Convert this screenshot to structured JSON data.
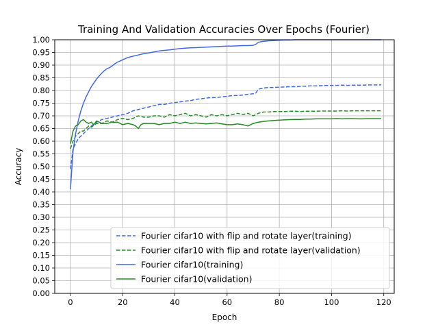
{
  "chart_data": {
    "type": "line",
    "title": "Training And Validation Accuracies Over Epochs (Fourier)",
    "xlabel": "Epoch",
    "ylabel": "Accuracy",
    "xlim": [
      -6,
      124
    ],
    "ylim": [
      0,
      1
    ],
    "xticks": [
      0,
      20,
      40,
      60,
      80,
      100,
      120
    ],
    "yticks": [
      0.0,
      0.05,
      0.1,
      0.15,
      0.2,
      0.25,
      0.3,
      0.35,
      0.4,
      0.45,
      0.5,
      0.55,
      0.6,
      0.65,
      0.7,
      0.75,
      0.8,
      0.85,
      0.9,
      0.95,
      1.0
    ],
    "grid": true,
    "legend_position": "lower-right",
    "series": [
      {
        "name": "Fourier cifar10 with flip and rotate layer(training)",
        "color": "#4169e1",
        "dash": "dashed",
        "points": [
          [
            0,
            0.49
          ],
          [
            1,
            0.57
          ],
          [
            2,
            0.59
          ],
          [
            3,
            0.61
          ],
          [
            4,
            0.62
          ],
          [
            5,
            0.63
          ],
          [
            6,
            0.64
          ],
          [
            7,
            0.65
          ],
          [
            8,
            0.66
          ],
          [
            10,
            0.675
          ],
          [
            12,
            0.685
          ],
          [
            14,
            0.69
          ],
          [
            16,
            0.695
          ],
          [
            18,
            0.7
          ],
          [
            20,
            0.705
          ],
          [
            22,
            0.71
          ],
          [
            24,
            0.72
          ],
          [
            26,
            0.725
          ],
          [
            28,
            0.73
          ],
          [
            30,
            0.735
          ],
          [
            32,
            0.74
          ],
          [
            34,
            0.745
          ],
          [
            36,
            0.745
          ],
          [
            38,
            0.75
          ],
          [
            40,
            0.752
          ],
          [
            42,
            0.755
          ],
          [
            44,
            0.758
          ],
          [
            46,
            0.76
          ],
          [
            48,
            0.765
          ],
          [
            50,
            0.767
          ],
          [
            52,
            0.77
          ],
          [
            54,
            0.772
          ],
          [
            56,
            0.772
          ],
          [
            58,
            0.775
          ],
          [
            60,
            0.777
          ],
          [
            62,
            0.78
          ],
          [
            64,
            0.78
          ],
          [
            66,
            0.782
          ],
          [
            68,
            0.785
          ],
          [
            70,
            0.787
          ],
          [
            71,
            0.79
          ],
          [
            72,
            0.805
          ],
          [
            74,
            0.81
          ],
          [
            76,
            0.812
          ],
          [
            78,
            0.812
          ],
          [
            80,
            0.813
          ],
          [
            82,
            0.814
          ],
          [
            84,
            0.815
          ],
          [
            86,
            0.815
          ],
          [
            88,
            0.816
          ],
          [
            90,
            0.817
          ],
          [
            92,
            0.818
          ],
          [
            94,
            0.818
          ],
          [
            96,
            0.819
          ],
          [
            98,
            0.82
          ],
          [
            100,
            0.82
          ],
          [
            102,
            0.82
          ],
          [
            104,
            0.821
          ],
          [
            106,
            0.82
          ],
          [
            108,
            0.821
          ],
          [
            110,
            0.821
          ],
          [
            112,
            0.821
          ],
          [
            114,
            0.822
          ],
          [
            116,
            0.822
          ],
          [
            119,
            0.822
          ]
        ]
      },
      {
        "name": "Fourier cifar10 with flip and rotate layer(validation)",
        "color": "#228b22",
        "dash": "dashed",
        "points": [
          [
            0,
            0.57
          ],
          [
            1,
            0.6
          ],
          [
            2,
            0.62
          ],
          [
            3,
            0.63
          ],
          [
            4,
            0.64
          ],
          [
            5,
            0.64
          ],
          [
            6,
            0.65
          ],
          [
            7,
            0.66
          ],
          [
            8,
            0.655
          ],
          [
            10,
            0.67
          ],
          [
            12,
            0.67
          ],
          [
            14,
            0.68
          ],
          [
            16,
            0.675
          ],
          [
            18,
            0.685
          ],
          [
            20,
            0.69
          ],
          [
            22,
            0.685
          ],
          [
            24,
            0.69
          ],
          [
            26,
            0.7
          ],
          [
            28,
            0.695
          ],
          [
            30,
            0.695
          ],
          [
            32,
            0.7
          ],
          [
            34,
            0.7
          ],
          [
            36,
            0.695
          ],
          [
            38,
            0.705
          ],
          [
            40,
            0.7
          ],
          [
            42,
            0.705
          ],
          [
            44,
            0.71
          ],
          [
            46,
            0.7
          ],
          [
            48,
            0.705
          ],
          [
            50,
            0.7
          ],
          [
            52,
            0.695
          ],
          [
            54,
            0.705
          ],
          [
            56,
            0.7
          ],
          [
            58,
            0.705
          ],
          [
            60,
            0.7
          ],
          [
            62,
            0.705
          ],
          [
            64,
            0.71
          ],
          [
            66,
            0.705
          ],
          [
            68,
            0.71
          ],
          [
            70,
            0.7
          ],
          [
            72,
            0.71
          ],
          [
            74,
            0.715
          ],
          [
            76,
            0.715
          ],
          [
            78,
            0.717
          ],
          [
            80,
            0.717
          ],
          [
            82,
            0.717
          ],
          [
            84,
            0.718
          ],
          [
            86,
            0.718
          ],
          [
            88,
            0.717
          ],
          [
            90,
            0.718
          ],
          [
            92,
            0.718
          ],
          [
            94,
            0.718
          ],
          [
            96,
            0.719
          ],
          [
            98,
            0.719
          ],
          [
            100,
            0.719
          ],
          [
            102,
            0.719
          ],
          [
            104,
            0.72
          ],
          [
            106,
            0.719
          ],
          [
            108,
            0.72
          ],
          [
            110,
            0.72
          ],
          [
            112,
            0.72
          ],
          [
            114,
            0.72
          ],
          [
            116,
            0.72
          ],
          [
            119,
            0.72
          ]
        ]
      },
      {
        "name": "Fourier cifar10(training)",
        "color": "#4169e1",
        "dash": "solid",
        "points": [
          [
            0,
            0.41
          ],
          [
            1,
            0.56
          ],
          [
            2,
            0.63
          ],
          [
            3,
            0.68
          ],
          [
            4,
            0.72
          ],
          [
            5,
            0.75
          ],
          [
            6,
            0.775
          ],
          [
            7,
            0.795
          ],
          [
            8,
            0.815
          ],
          [
            9,
            0.83
          ],
          [
            10,
            0.845
          ],
          [
            11,
            0.857
          ],
          [
            12,
            0.868
          ],
          [
            13,
            0.878
          ],
          [
            14,
            0.886
          ],
          [
            15,
            0.89
          ],
          [
            16,
            0.897
          ],
          [
            17,
            0.905
          ],
          [
            18,
            0.912
          ],
          [
            19,
            0.916
          ],
          [
            20,
            0.921
          ],
          [
            22,
            0.93
          ],
          [
            24,
            0.935
          ],
          [
            26,
            0.94
          ],
          [
            28,
            0.945
          ],
          [
            30,
            0.948
          ],
          [
            32,
            0.952
          ],
          [
            34,
            0.956
          ],
          [
            36,
            0.958
          ],
          [
            38,
            0.96
          ],
          [
            40,
            0.963
          ],
          [
            42,
            0.965
          ],
          [
            44,
            0.967
          ],
          [
            46,
            0.968
          ],
          [
            48,
            0.969
          ],
          [
            50,
            0.97
          ],
          [
            52,
            0.971
          ],
          [
            54,
            0.972
          ],
          [
            56,
            0.973
          ],
          [
            58,
            0.974
          ],
          [
            60,
            0.975
          ],
          [
            62,
            0.975
          ],
          [
            64,
            0.976
          ],
          [
            66,
            0.977
          ],
          [
            68,
            0.977
          ],
          [
            70,
            0.978
          ],
          [
            71,
            0.982
          ],
          [
            72,
            0.99
          ],
          [
            74,
            0.994
          ],
          [
            76,
            0.996
          ],
          [
            78,
            0.997
          ],
          [
            80,
            0.998
          ],
          [
            82,
            0.999
          ],
          [
            84,
            0.999
          ],
          [
            86,
            1.0
          ],
          [
            90,
            1.0
          ],
          [
            95,
            1.0
          ],
          [
            100,
            1.0
          ],
          [
            105,
            1.0
          ],
          [
            110,
            1.0
          ],
          [
            115,
            1.0
          ],
          [
            119,
            1.0
          ]
        ]
      },
      {
        "name": "Fourier cifar10(validation)",
        "color": "#228b22",
        "dash": "solid",
        "points": [
          [
            0,
            0.59
          ],
          [
            1,
            0.64
          ],
          [
            2,
            0.66
          ],
          [
            3,
            0.665
          ],
          [
            4,
            0.68
          ],
          [
            5,
            0.685
          ],
          [
            6,
            0.675
          ],
          [
            7,
            0.67
          ],
          [
            8,
            0.675
          ],
          [
            9,
            0.665
          ],
          [
            10,
            0.68
          ],
          [
            11,
            0.675
          ],
          [
            12,
            0.67
          ],
          [
            14,
            0.67
          ],
          [
            16,
            0.675
          ],
          [
            18,
            0.675
          ],
          [
            20,
            0.665
          ],
          [
            22,
            0.67
          ],
          [
            24,
            0.665
          ],
          [
            25,
            0.66
          ],
          [
            26,
            0.65
          ],
          [
            27,
            0.665
          ],
          [
            28,
            0.67
          ],
          [
            30,
            0.67
          ],
          [
            32,
            0.67
          ],
          [
            34,
            0.665
          ],
          [
            36,
            0.67
          ],
          [
            38,
            0.67
          ],
          [
            40,
            0.675
          ],
          [
            42,
            0.67
          ],
          [
            44,
            0.675
          ],
          [
            46,
            0.67
          ],
          [
            48,
            0.672
          ],
          [
            50,
            0.67
          ],
          [
            52,
            0.668
          ],
          [
            54,
            0.67
          ],
          [
            56,
            0.672
          ],
          [
            58,
            0.668
          ],
          [
            60,
            0.665
          ],
          [
            62,
            0.665
          ],
          [
            64,
            0.668
          ],
          [
            66,
            0.665
          ],
          [
            68,
            0.66
          ],
          [
            70,
            0.67
          ],
          [
            72,
            0.675
          ],
          [
            74,
            0.678
          ],
          [
            76,
            0.68
          ],
          [
            78,
            0.682
          ],
          [
            80,
            0.683
          ],
          [
            82,
            0.684
          ],
          [
            84,
            0.685
          ],
          [
            86,
            0.686
          ],
          [
            88,
            0.686
          ],
          [
            90,
            0.687
          ],
          [
            92,
            0.687
          ],
          [
            94,
            0.688
          ],
          [
            96,
            0.688
          ],
          [
            98,
            0.688
          ],
          [
            100,
            0.688
          ],
          [
            102,
            0.689
          ],
          [
            104,
            0.688
          ],
          [
            106,
            0.689
          ],
          [
            108,
            0.689
          ],
          [
            110,
            0.688
          ],
          [
            112,
            0.688
          ],
          [
            114,
            0.689
          ],
          [
            116,
            0.689
          ],
          [
            119,
            0.689
          ]
        ]
      }
    ]
  }
}
